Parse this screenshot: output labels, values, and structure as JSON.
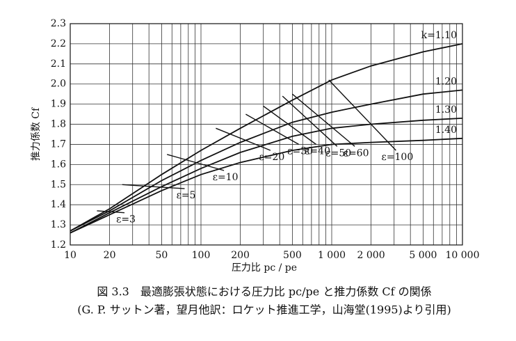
{
  "chart_data": {
    "type": "line",
    "x_label": "圧力比 pc / pe",
    "y_label": "推力係数 Cf",
    "caption": [
      "図 3.3　最適膨張状態における圧力比 pc/pe と推力係数 Cf の関係",
      "(G. P. サットン著，望月他訳：ロケット推進工学，山海堂(1995)より引用)"
    ],
    "x_log": true,
    "xlim": [
      10,
      10000
    ],
    "ylim": [
      1.2,
      2.3
    ],
    "xticks": [
      10,
      20,
      50,
      100,
      200,
      500,
      {
        "value": 1000,
        "label": "1 000"
      },
      {
        "value": 2000,
        "label": "2 000"
      },
      {
        "value": 5000,
        "label": "5 000"
      },
      {
        "value": 10000,
        "label": "10 000"
      }
    ],
    "x_minor_ticks": [
      30,
      40,
      60,
      70,
      80,
      90,
      300,
      400,
      600,
      700,
      800,
      900,
      3000,
      4000,
      6000,
      7000,
      8000,
      9000
    ],
    "yticks": [
      1.2,
      1.3,
      1.4,
      1.5,
      1.6,
      1.7,
      1.8,
      1.9,
      {
        "value": 2,
        "label": "2.0"
      },
      2.1,
      2.2,
      2.3
    ],
    "grid": true,
    "color": "#111111",
    "x": [
      10,
      20,
      50,
      100,
      200,
      500,
      1000,
      2000,
      5000,
      10000
    ],
    "series": [
      {
        "name": "k=1.10",
        "values": [
          1.27,
          1.38,
          1.55,
          1.67,
          1.78,
          1.92,
          2.02,
          2.09,
          2.16,
          2.2
        ]
      },
      {
        "name": "1.20",
        "values": [
          1.27,
          1.37,
          1.52,
          1.62,
          1.71,
          1.81,
          1.86,
          1.9,
          1.95,
          1.97
        ]
      },
      {
        "name": "1.30",
        "values": [
          1.26,
          1.36,
          1.49,
          1.58,
          1.66,
          1.74,
          1.78,
          1.8,
          1.82,
          1.83
        ]
      },
      {
        "name": "1.40",
        "values": [
          1.26,
          1.35,
          1.47,
          1.55,
          1.61,
          1.67,
          1.7,
          1.71,
          1.72,
          1.73
        ]
      }
    ],
    "epsilon_lines": [
      {
        "name": "ε=3",
        "x": [
          16,
          26
        ],
        "values": [
          1.37,
          1.36
        ]
      },
      {
        "name": "ε=5",
        "x": [
          25,
          75
        ],
        "values": [
          1.5,
          1.48
        ]
      },
      {
        "name": "ε=10",
        "x": [
          55,
          150
        ],
        "values": [
          1.65,
          1.57
        ]
      },
      {
        "name": "ε=20",
        "x": [
          130,
          340
        ],
        "values": [
          1.78,
          1.67
        ]
      },
      {
        "name": "ε=30",
        "x": [
          220,
          560
        ],
        "values": [
          1.85,
          1.7
        ]
      },
      {
        "name": "ε=40",
        "x": [
          300,
          760
        ],
        "values": [
          1.89,
          1.7
        ]
      },
      {
        "name": "ε=50",
        "x": [
          420,
          1100
        ],
        "values": [
          1.94,
          1.69
        ]
      },
      {
        "name": "ε=60",
        "x": [
          500,
          1500
        ],
        "values": [
          1.95,
          1.69
        ]
      },
      {
        "name": "ε=100",
        "x": [
          950,
          3100
        ],
        "values": [
          2.02,
          1.67
        ]
      }
    ]
  }
}
